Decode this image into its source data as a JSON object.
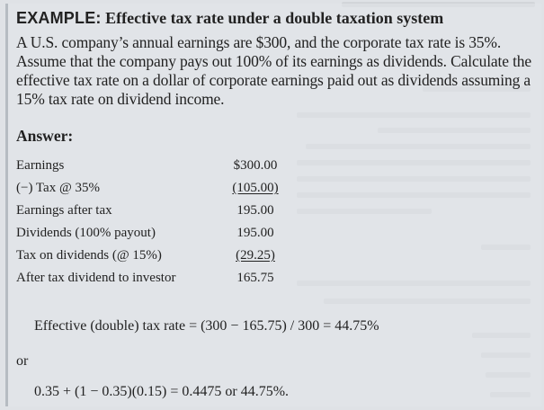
{
  "example": {
    "label": "EXAMPLE:",
    "title": "Effective tax rate under a double taxation system"
  },
  "problem": {
    "text": "A U.S. company’s annual earnings are $300, and the corporate tax rate is 35%. Assume that the company pays out 100% of its earnings as dividends. Calculate the effective tax rate on a dollar of corporate earnings paid out as dividends assuming a 15% tax rate on dividend income."
  },
  "answer": {
    "heading": "Answer:",
    "rows": [
      {
        "label": "Earnings",
        "value": "$300.00"
      },
      {
        "label": "(−) Tax @ 35%",
        "value": "(105.00)"
      },
      {
        "label": "Earnings after tax",
        "value": "195.00"
      },
      {
        "label": "Dividends (100% payout)",
        "value": "195.00"
      },
      {
        "label": "Tax on dividends (@ 15%)",
        "value": "(29.25)"
      },
      {
        "label": "After tax dividend to investor",
        "value": "165.75"
      }
    ],
    "formula": "Effective (double) tax rate = (300 − 165.75) / 300 = 44.75%",
    "or": "or",
    "formula_alt": "0.35 + (1 − 0.35)(0.15) = 0.4475 or 44.75%."
  }
}
